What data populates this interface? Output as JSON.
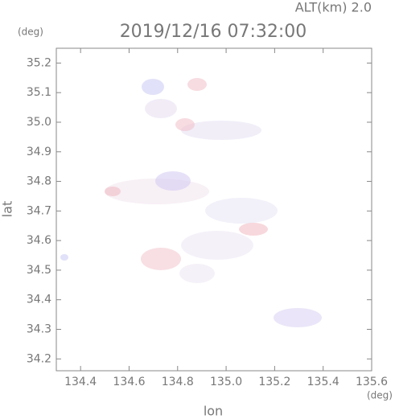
{
  "chart_data": {
    "type": "map",
    "title": "2019/12/16 07:32:00",
    "subtitle": "ALT(km) 2.0",
    "x_label": "lon",
    "y_label": "lat",
    "x_unit": "(deg)",
    "y_unit": "(deg)",
    "xlim": [
      134.3,
      135.6
    ],
    "ylim": [
      34.16,
      35.25
    ],
    "xticks": [
      134.4,
      134.6,
      134.8,
      {
        "value": 135,
        "label": "135.0"
      },
      135.2,
      135.4,
      135.6
    ],
    "yticks": [
      34.2,
      34.3,
      34.4,
      34.5,
      34.6,
      34.7,
      34.8,
      34.9,
      {
        "value": 35,
        "label": "35.0"
      },
      35.1,
      35.2
    ]
  }
}
